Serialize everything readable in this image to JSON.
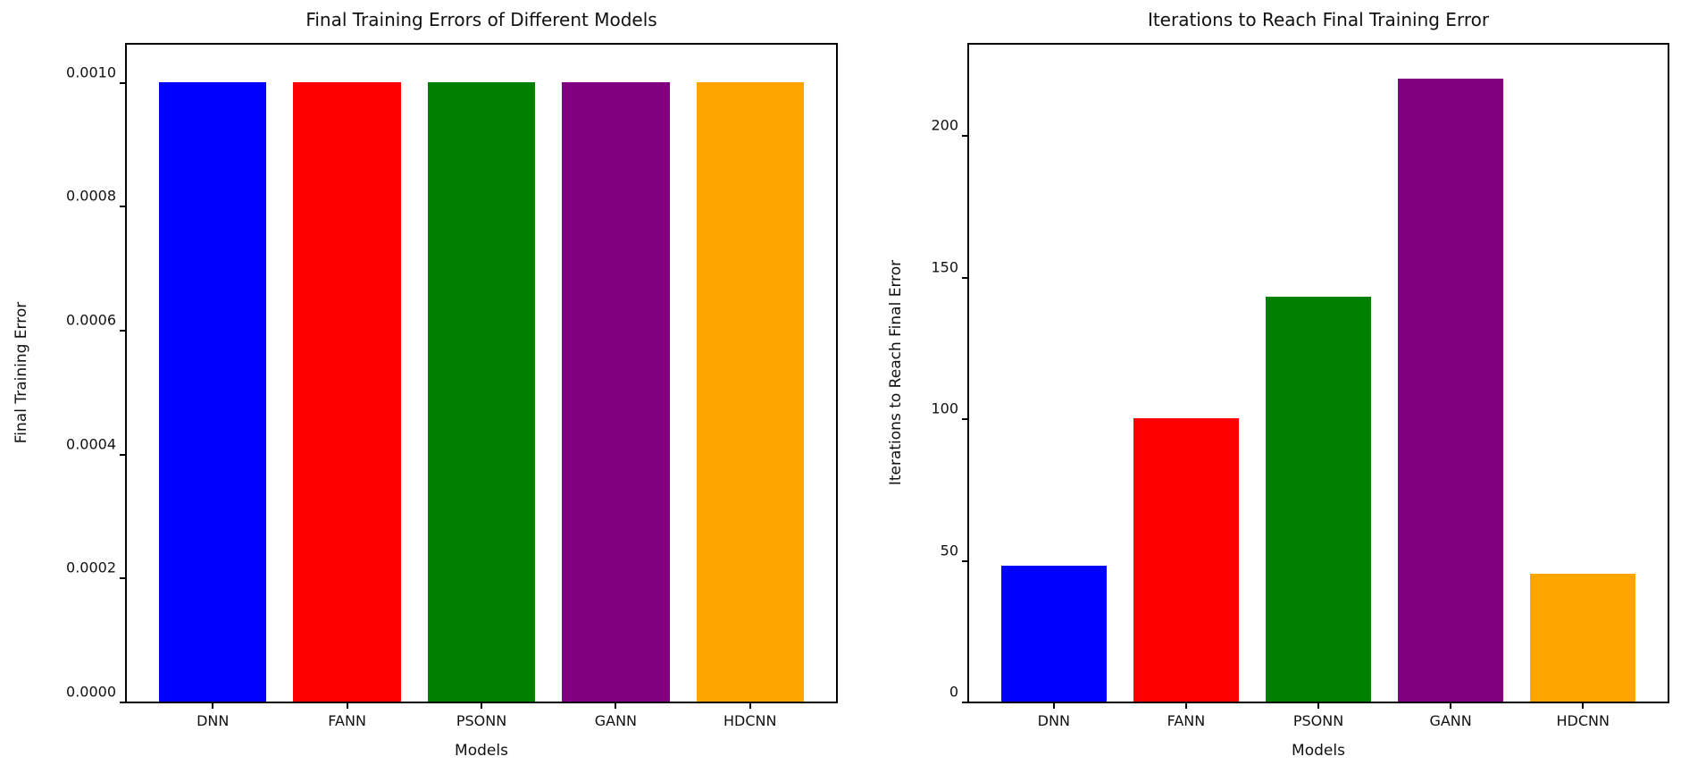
{
  "figure": {
    "background": "#ffffff",
    "text_color": "#111111"
  },
  "chart_data": [
    {
      "type": "bar",
      "title": "Final Training Errors of Different Models",
      "xlabel": "Models",
      "ylabel": "Final Training Error",
      "categories": [
        "DNN",
        "FANN",
        "PSONN",
        "GANN",
        "HDCNN"
      ],
      "values": [
        0.001,
        0.001,
        0.001,
        0.001,
        0.001
      ],
      "bar_colors": [
        "#0000ff",
        "#ff0000",
        "#008000",
        "#800080",
        "#ffa500"
      ],
      "ytick_values": [
        0.0,
        0.0002,
        0.0004,
        0.0006,
        0.0008,
        0.001
      ],
      "ytick_labels": [
        "0.0000",
        "0.0002",
        "0.0004",
        "0.0006",
        "0.0008",
        "0.0010"
      ],
      "ylim": [
        0,
        0.00106
      ],
      "grid": false,
      "legend": null
    },
    {
      "type": "bar",
      "title": "Iterations to Reach Final Training Error",
      "xlabel": "Models",
      "ylabel": "Iterations to Reach Final Error",
      "categories": [
        "DNN",
        "FANN",
        "PSONN",
        "GANN",
        "HDCNN"
      ],
      "values": [
        48,
        100,
        143,
        220,
        45
      ],
      "bar_colors": [
        "#0000ff",
        "#ff0000",
        "#008000",
        "#800080",
        "#ffa500"
      ],
      "ytick_values": [
        0,
        50,
        100,
        150,
        200
      ],
      "ytick_labels": [
        "0",
        "50",
        "100",
        "150",
        "200"
      ],
      "ylim": [
        0,
        232
      ],
      "grid": false,
      "legend": null
    }
  ]
}
